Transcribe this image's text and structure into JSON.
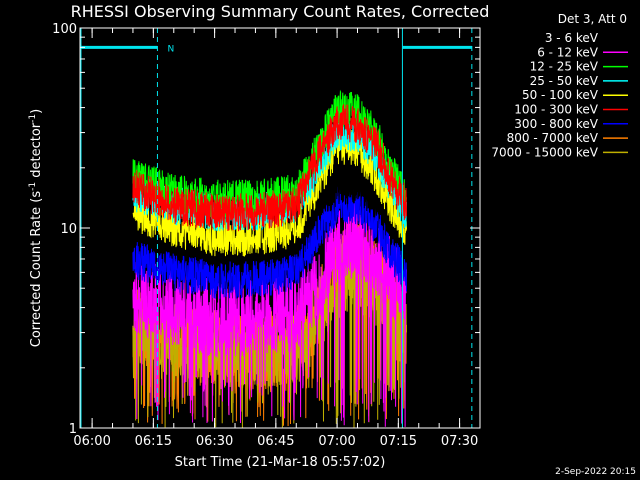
{
  "chart_data": {
    "type": "line",
    "title": "RHESSI Observing Summary Count Rates, Corrected",
    "xlabel": "Start Time (21-Mar-18 05:57:02)",
    "ylabel": "Corrected Count Rate (s⁻¹ detector⁻¹)",
    "ylabel_main": "Corrected Count Rate (s",
    "ylabel_sup1": "-1",
    "ylabel_mid": " detector",
    "ylabel_sup2": "-1",
    "ylabel_end": ")",
    "y_scale": "log",
    "ylim": [
      1,
      100
    ],
    "xlim": [
      "05:57:02",
      "07:35:00"
    ],
    "x_ticks": [
      "06:00",
      "06:15",
      "06:30",
      "06:45",
      "07:00",
      "07:15",
      "07:30"
    ],
    "y_ticks": [
      "1",
      "10",
      "100"
    ],
    "legend_header": "Det 3, Att 0",
    "legend_position": "top-right, outside plot",
    "series": [
      {
        "name": "3 - 6 keV",
        "color": "#000000",
        "x": [
          "06:10",
          "06:20",
          "06:30",
          "06:40",
          "06:50",
          "06:55",
          "07:00",
          "07:05",
          "07:10",
          "07:14",
          "07:17"
        ],
        "y": [
          14,
          12,
          11,
          11,
          11,
          13,
          16,
          16,
          14,
          11,
          10
        ]
      },
      {
        "name": "6 - 12 keV",
        "color": "#ff00ff",
        "x": [
          "06:10",
          "06:20",
          "06:30",
          "06:40",
          "06:50",
          "06:55",
          "07:00",
          "07:05",
          "07:10",
          "07:14",
          "07:17"
        ],
        "y": [
          4.5,
          4,
          3.5,
          3.5,
          3.8,
          5,
          8,
          9,
          7,
          5.5,
          4.5
        ]
      },
      {
        "name": "12 - 25 keV",
        "color": "#00ff00",
        "x": [
          "06:10",
          "06:20",
          "06:30",
          "06:40",
          "06:50",
          "06:55",
          "07:00",
          "07:05",
          "07:10",
          "07:14",
          "07:17"
        ],
        "y": [
          18,
          15,
          14,
          14,
          15,
          24,
          40,
          38,
          28,
          18,
          14
        ]
      },
      {
        "name": "25 - 50 keV",
        "color": "#00ffff",
        "x": [
          "06:10",
          "06:20",
          "06:30",
          "06:40",
          "06:50",
          "06:55",
          "07:00",
          "07:05",
          "07:10",
          "07:14",
          "07:17"
        ],
        "y": [
          15,
          13,
          12,
          12,
          13,
          20,
          30,
          30,
          22,
          15,
          12
        ]
      },
      {
        "name": "50 - 100 keV",
        "color": "#ffff00",
        "x": [
          "06:10",
          "06:20",
          "06:30",
          "06:40",
          "06:50",
          "06:55",
          "07:00",
          "07:05",
          "07:10",
          "07:14",
          "07:17"
        ],
        "y": [
          12,
          10,
          9,
          9,
          10,
          16,
          26,
          25,
          18,
          12,
          10
        ]
      },
      {
        "name": "100 - 300 keV",
        "color": "#ff0000",
        "x": [
          "06:10",
          "06:20",
          "06:30",
          "06:40",
          "06:50",
          "06:55",
          "07:00",
          "07:05",
          "07:10",
          "07:14",
          "07:17"
        ],
        "y": [
          16,
          13,
          12,
          12,
          13,
          22,
          34,
          33,
          25,
          16,
          13
        ]
      },
      {
        "name": "300 - 800 keV",
        "color": "#0000ff",
        "x": [
          "06:10",
          "06:20",
          "06:30",
          "06:40",
          "06:50",
          "06:55",
          "07:00",
          "07:05",
          "07:10",
          "07:14",
          "07:17"
        ],
        "y": [
          7,
          6,
          5.5,
          5.5,
          6,
          9,
          13,
          13,
          10,
          7,
          6
        ]
      },
      {
        "name": "800 - 7000 keV",
        "color": "#ff7f00",
        "x": [
          "06:10",
          "06:20",
          "06:30",
          "06:40",
          "06:50",
          "06:55",
          "07:00",
          "07:05",
          "07:10",
          "07:14",
          "07:17"
        ],
        "y": [
          3.2,
          3,
          2.6,
          2.4,
          2.6,
          4,
          6.5,
          7,
          5.5,
          4,
          3
        ]
      },
      {
        "name": "7000 - 15000 keV",
        "color": "#bfaf00",
        "x": [
          "06:10",
          "06:20",
          "06:30",
          "06:40",
          "06:50",
          "06:55",
          "07:00",
          "07:05",
          "07:10",
          "07:14",
          "07:17"
        ],
        "y": [
          3,
          2.8,
          2.5,
          2.4,
          2.5,
          3.5,
          5.5,
          6,
          4.8,
          3.5,
          2.8
        ]
      }
    ],
    "night_intervals": [
      [
        "05:57:02",
        "06:16:00"
      ],
      [
        "07:16:00",
        "07:33:00"
      ]
    ],
    "night_marker": "N",
    "saa_lines": [
      "06:16:00",
      "07:16:00",
      "07:33:00"
    ],
    "grid": false
  },
  "footer": {
    "timestamp": "2-Sep-2022 20:15"
  },
  "colors": {
    "background": "#000000",
    "axes": "#ffffff",
    "night_bar": "#00e5ee"
  }
}
